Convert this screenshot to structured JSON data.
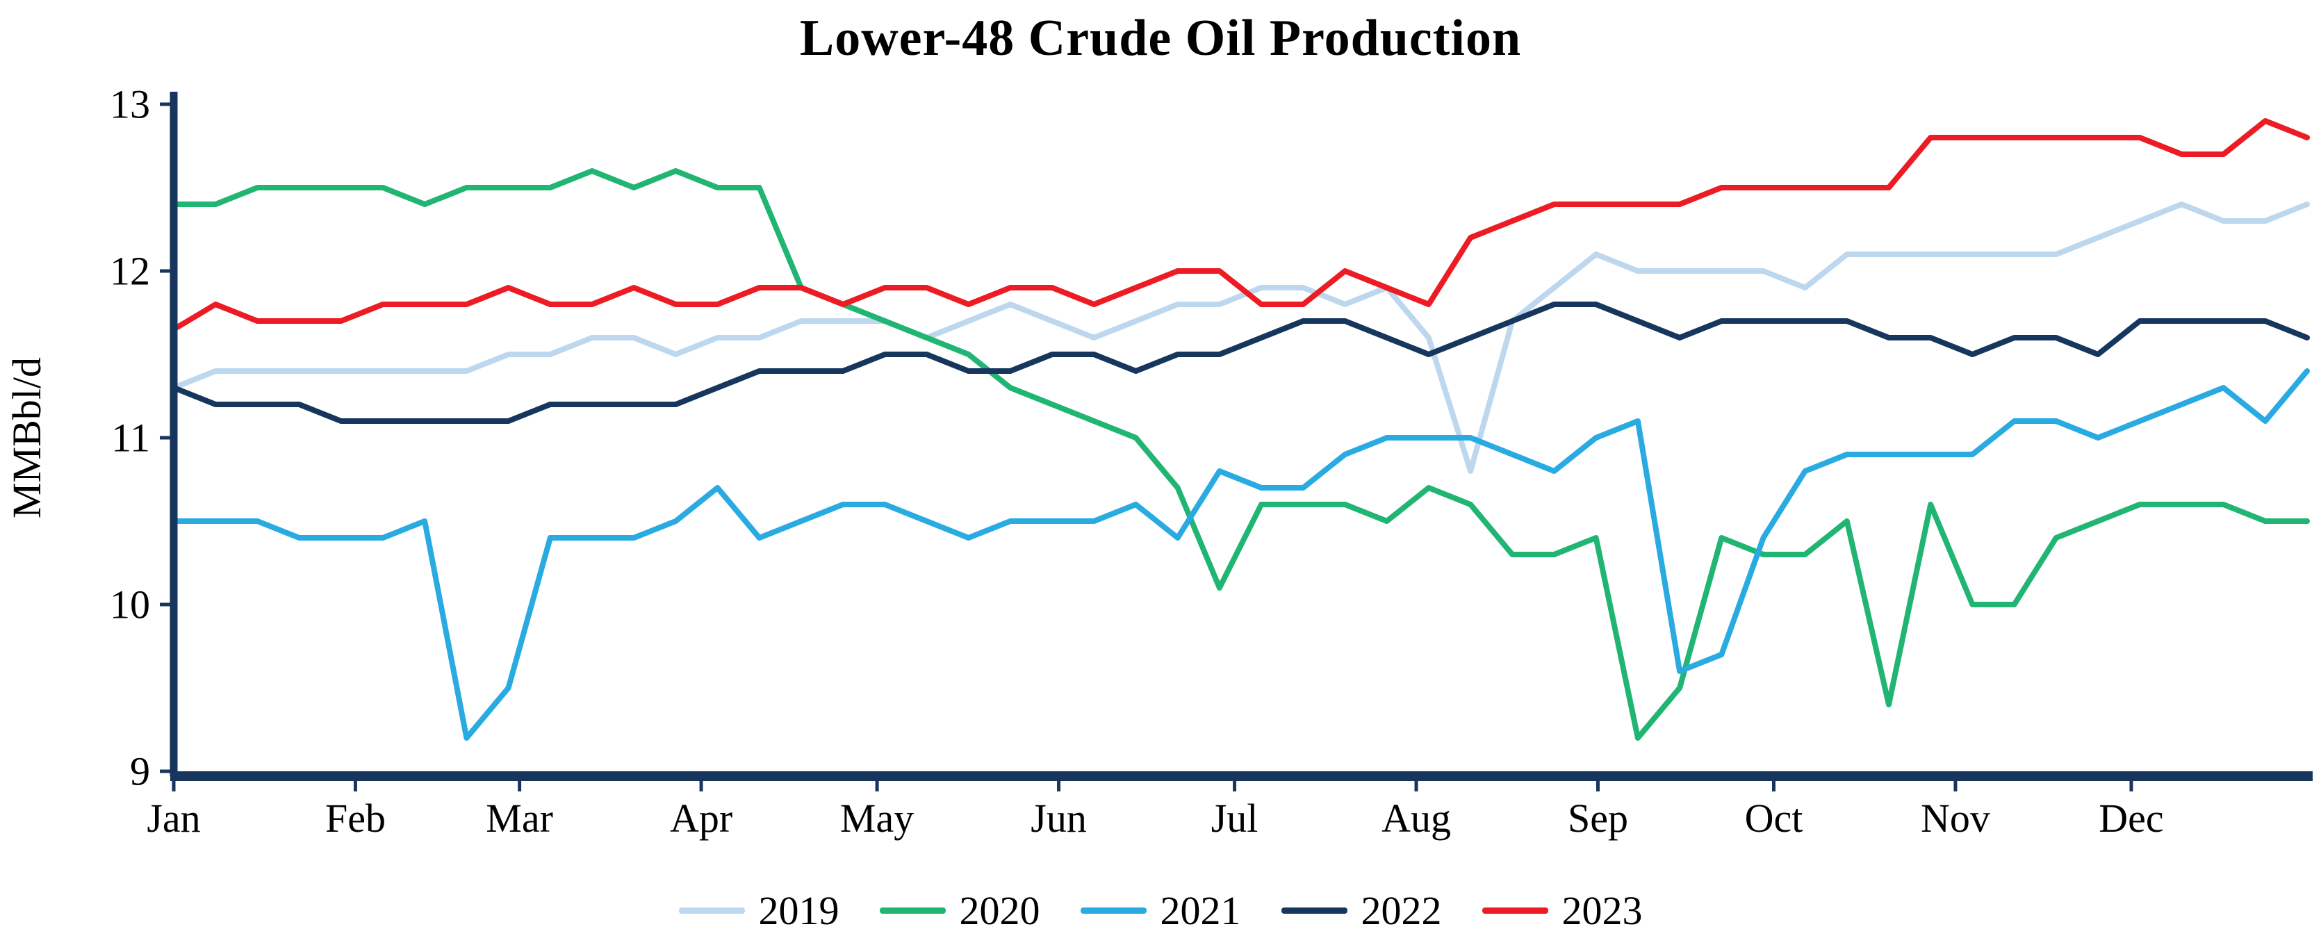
{
  "chart_data": {
    "type": "line",
    "title": "Lower-48 Crude Oil Production",
    "ylabel": "MMBbl/d",
    "xlabel": "",
    "ylim": [
      9,
      13
    ],
    "yticks": [
      9,
      10,
      11,
      12,
      13
    ],
    "grid": false,
    "legend_position": "bottom",
    "background_color": "#ffffff",
    "axis_color": "#17365d",
    "text_color": "#000000",
    "x_axis": {
      "unit": "weekly",
      "points_per_series": 52,
      "month_labels": [
        "Jan",
        "Feb",
        "Mar",
        "Apr",
        "May",
        "Jun",
        "Jul",
        "Aug",
        "Sep",
        "Oct",
        "Nov",
        "Dec"
      ],
      "month_tick_day_of_year": [
        0,
        31,
        59,
        90,
        120,
        151,
        181,
        212,
        243,
        273,
        304,
        334
      ],
      "days_per_year": 364
    },
    "series": [
      {
        "name": "2019",
        "color": "#bdd7ee",
        "values": [
          11.3,
          11.4,
          11.4,
          11.4,
          11.4,
          11.4,
          11.4,
          11.4,
          11.5,
          11.5,
          11.6,
          11.6,
          11.5,
          11.6,
          11.6,
          11.7,
          11.7,
          11.7,
          11.6,
          11.7,
          11.8,
          11.7,
          11.6,
          11.7,
          11.8,
          11.8,
          11.9,
          11.9,
          11.8,
          11.9,
          11.6,
          10.8,
          11.7,
          11.9,
          12.1,
          12.0,
          12.0,
          12.0,
          12.0,
          11.9,
          12.1,
          12.1,
          12.1,
          12.1,
          12.1,
          12.1,
          12.2,
          12.3,
          12.4,
          12.3,
          12.3,
          12.4
        ]
      },
      {
        "name": "2020",
        "color": "#21b573",
        "values": [
          12.4,
          12.4,
          12.5,
          12.5,
          12.5,
          12.5,
          12.4,
          12.5,
          12.5,
          12.5,
          12.6,
          12.5,
          12.6,
          12.5,
          12.5,
          11.9,
          11.8,
          11.7,
          11.6,
          11.5,
          11.3,
          11.2,
          11.1,
          11.0,
          10.7,
          10.1,
          10.6,
          10.6,
          10.6,
          10.5,
          10.7,
          10.6,
          10.3,
          10.3,
          10.4,
          9.2,
          9.5,
          10.4,
          10.3,
          10.3,
          10.5,
          9.4,
          10.6,
          10.0,
          10.0,
          10.4,
          10.5,
          10.6,
          10.6,
          10.6,
          10.5,
          10.5
        ]
      },
      {
        "name": "2021",
        "color": "#29abe2",
        "values": [
          10.5,
          10.5,
          10.5,
          10.4,
          10.4,
          10.4,
          10.5,
          9.2,
          9.5,
          10.4,
          10.4,
          10.4,
          10.5,
          10.7,
          10.4,
          10.5,
          10.6,
          10.6,
          10.5,
          10.4,
          10.5,
          10.5,
          10.5,
          10.6,
          10.4,
          10.8,
          10.7,
          10.7,
          10.9,
          11.0,
          11.0,
          11.0,
          10.9,
          10.8,
          11.0,
          11.1,
          9.6,
          9.7,
          10.4,
          10.8,
          10.9,
          10.9,
          10.9,
          10.9,
          11.1,
          11.1,
          11.0,
          11.1,
          11.2,
          11.3,
          11.1,
          11.4
        ]
      },
      {
        "name": "2022",
        "color": "#17365d",
        "values": [
          11.3,
          11.2,
          11.2,
          11.2,
          11.1,
          11.1,
          11.1,
          11.1,
          11.1,
          11.2,
          11.2,
          11.2,
          11.2,
          11.3,
          11.4,
          11.4,
          11.4,
          11.5,
          11.5,
          11.4,
          11.4,
          11.5,
          11.5,
          11.4,
          11.5,
          11.5,
          11.6,
          11.7,
          11.7,
          11.6,
          11.5,
          11.6,
          11.7,
          11.8,
          11.8,
          11.7,
          11.6,
          11.7,
          11.7,
          11.7,
          11.7,
          11.6,
          11.6,
          11.5,
          11.6,
          11.6,
          11.5,
          11.7,
          11.7,
          11.7,
          11.7,
          11.6
        ]
      },
      {
        "name": "2023",
        "color": "#ed1c24",
        "values": [
          11.65,
          11.8,
          11.7,
          11.7,
          11.7,
          11.8,
          11.8,
          11.8,
          11.9,
          11.8,
          11.8,
          11.9,
          11.8,
          11.8,
          11.9,
          11.9,
          11.8,
          11.9,
          11.9,
          11.8,
          11.9,
          11.9,
          11.8,
          11.9,
          12.0,
          12.0,
          11.8,
          11.8,
          12.0,
          11.9,
          11.8,
          12.2,
          12.3,
          12.4,
          12.4,
          12.4,
          12.4,
          12.5,
          12.5,
          12.5,
          12.5,
          12.5,
          12.8,
          12.8,
          12.8,
          12.8,
          12.8,
          12.8,
          12.7,
          12.7,
          12.9,
          12.8
        ]
      }
    ]
  }
}
